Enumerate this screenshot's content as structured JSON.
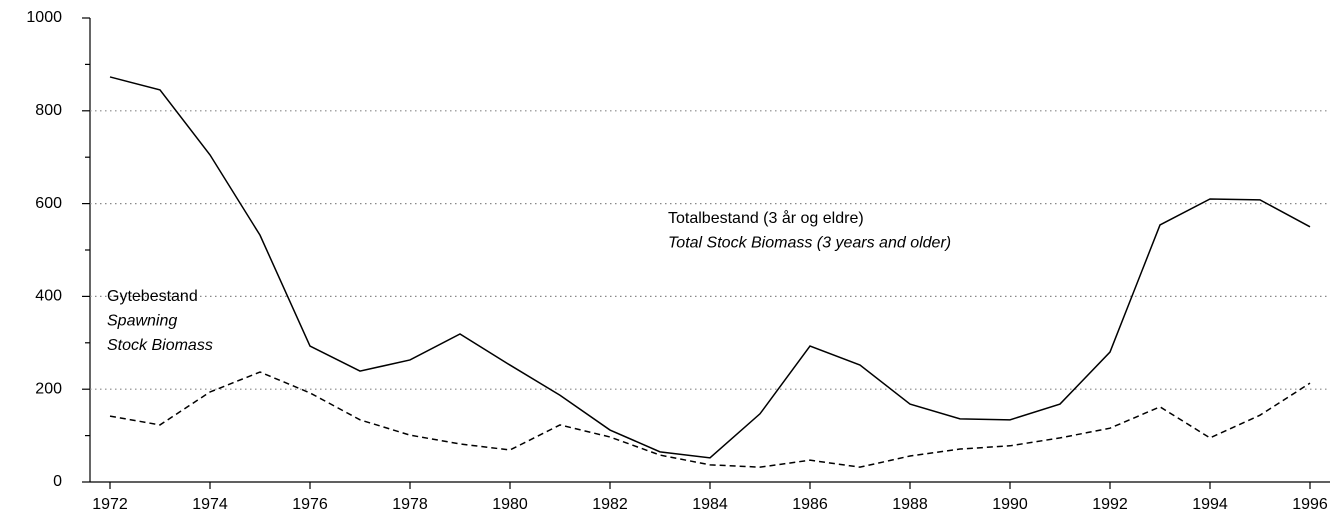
{
  "chart_data": {
    "type": "line",
    "x": [
      1972,
      1973,
      1974,
      1975,
      1976,
      1977,
      1978,
      1979,
      1980,
      1981,
      1982,
      1983,
      1984,
      1985,
      1986,
      1987,
      1988,
      1989,
      1990,
      1991,
      1992,
      1993,
      1994,
      1995,
      1996
    ],
    "series": [
      {
        "color": "#000000",
        "dash": "solid",
        "values": [
          873,
          845,
          705,
          532,
          293,
          239,
          263,
          319,
          252,
          187,
          112,
          65,
          52,
          147,
          293,
          252,
          168,
          136,
          134,
          168,
          280,
          554,
          610,
          608,
          550
        ]
      },
      {
        "color": "#000000",
        "dash": "dashed",
        "values": [
          142,
          123,
          194,
          237,
          192,
          134,
          101,
          82,
          69,
          123,
          97,
          58,
          37,
          32,
          47,
          32,
          56,
          71,
          78,
          95,
          116,
          162,
          95,
          144,
          213
        ]
      }
    ],
    "xlim": [
      1972,
      1996
    ],
    "xticks": [
      1972,
      1974,
      1976,
      1978,
      1980,
      1982,
      1984,
      1986,
      1988,
      1990,
      1992,
      1994,
      1996
    ],
    "ylim": [
      0,
      1000
    ],
    "yticks": [
      0,
      200,
      400,
      600,
      800,
      1000
    ],
    "yminorticks": [
      100,
      300,
      500,
      700,
      900
    ],
    "grid": true,
    "annotations": [
      {
        "lines": [
          {
            "text": "Totalbestand (3 år og eldre)",
            "italic": false
          },
          {
            "text": "Total Stock Biomass (3 years and older)",
            "italic": true
          }
        ]
      },
      {
        "lines": [
          {
            "text": "Gytebestand",
            "italic": false
          },
          {
            "text": "Spawning",
            "italic": true
          },
          {
            "text": "Stock Biomass",
            "italic": true
          }
        ]
      }
    ]
  }
}
